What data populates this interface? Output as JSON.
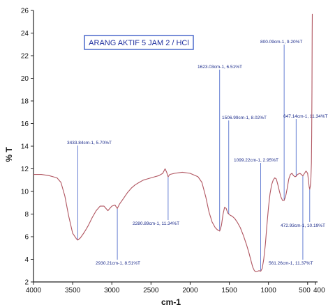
{
  "chart_data": {
    "type": "line",
    "title": "ARANG AKTIF 5 JAM 2 / HCl",
    "xlabel": "cm-1",
    "ylabel": "% T",
    "xlim": [
      4000,
      400
    ],
    "ylim": [
      2,
      26
    ],
    "x_ticks": [
      4000,
      3500,
      3000,
      2500,
      2000,
      1500,
      1000,
      500,
      400
    ],
    "x_tick_labels": [
      "4000",
      "3500",
      "3000",
      "2500",
      "2000",
      "1500",
      "1000",
      "500",
      "400"
    ],
    "y_ticks": [
      2,
      4,
      6,
      8,
      10,
      12,
      14,
      16,
      18,
      20,
      22,
      24,
      26
    ],
    "y_tick_labels": [
      "2",
      "4",
      "6",
      "8",
      "10",
      "12",
      "14",
      "16",
      "18",
      "20",
      "22",
      "24",
      "26"
    ],
    "line_color": "#b05560",
    "annotation_color": "#3f5fc8",
    "series": [
      {
        "x": [
          4000,
          3900,
          3800,
          3750,
          3700,
          3650,
          3600,
          3550,
          3500,
          3450,
          3434,
          3400,
          3350,
          3300,
          3250,
          3200,
          3150,
          3100,
          3050,
          3000,
          2960,
          2930,
          2900,
          2850,
          2800,
          2750,
          2700,
          2650,
          2600,
          2550,
          2500,
          2450,
          2400,
          2350,
          2320,
          2300,
          2281,
          2260,
          2200,
          2100,
          2000,
          1900,
          1850,
          1800,
          1760,
          1720,
          1680,
          1650,
          1623,
          1600,
          1580,
          1560,
          1540,
          1520,
          1507,
          1490,
          1460,
          1430,
          1400,
          1360,
          1320,
          1280,
          1250,
          1220,
          1200,
          1180,
          1160,
          1140,
          1120,
          1099,
          1080,
          1060,
          1040,
          1020,
          1000,
          980,
          960,
          940,
          920,
          900,
          880,
          860,
          840,
          820,
          800,
          780,
          760,
          740,
          720,
          700,
          680,
          660,
          647,
          630,
          600,
          580,
          561,
          540,
          520,
          500,
          490,
          480,
          473,
          465,
          458,
          452,
          448,
          445,
          442,
          440
        ],
        "y": [
          11.5,
          11.5,
          11.4,
          11.3,
          11.2,
          10.8,
          9.6,
          7.8,
          6.3,
          5.8,
          5.7,
          5.9,
          6.4,
          7.0,
          7.7,
          8.3,
          8.7,
          8.7,
          8.3,
          8.7,
          8.8,
          8.5,
          8.9,
          9.4,
          9.9,
          10.3,
          10.6,
          10.8,
          11.0,
          11.1,
          11.2,
          11.3,
          11.4,
          11.6,
          12.0,
          11.7,
          11.3,
          11.5,
          11.6,
          11.7,
          11.6,
          11.3,
          10.8,
          9.5,
          8.2,
          7.3,
          6.8,
          6.6,
          6.5,
          7.0,
          8.0,
          8.6,
          8.5,
          8.1,
          8.0,
          7.9,
          7.8,
          7.6,
          7.3,
          6.8,
          6.1,
          5.3,
          4.6,
          3.8,
          3.3,
          3.0,
          2.9,
          2.95,
          3.0,
          2.95,
          3.2,
          4.0,
          5.3,
          7.0,
          8.6,
          9.8,
          10.6,
          11.0,
          11.2,
          11.1,
          10.6,
          10.0,
          9.5,
          9.2,
          9.2,
          9.6,
          10.3,
          11.1,
          11.5,
          11.6,
          11.4,
          11.3,
          11.34,
          11.5,
          11.6,
          11.5,
          11.37,
          11.6,
          11.8,
          11.6,
          11.0,
          10.4,
          10.19,
          10.5,
          11.2,
          12.5,
          15.0,
          19.0,
          24.0,
          25.7
        ]
      }
    ],
    "annotations": [
      {
        "text": "3433.84cm-1, 5.70%T",
        "x": 3434,
        "y": 5.7
      },
      {
        "text": "2930.21cm-1, 8.51%T",
        "x": 2930,
        "y": 8.51
      },
      {
        "text": "2280.89cm-1, 11.34%T",
        "x": 2281,
        "y": 11.34
      },
      {
        "text": "1623.03cm-1, 6.51%T",
        "x": 1623,
        "y": 6.51
      },
      {
        "text": "1506.99cm-1, 8.02%T",
        "x": 1507,
        "y": 8.02
      },
      {
        "text": "1099.22cm-1, 2.95%T",
        "x": 1099,
        "y": 2.95
      },
      {
        "text": "800.09cm-1, 9.20%T",
        "x": 800,
        "y": 9.2
      },
      {
        "text": "647.14cm-1, 11.34%T",
        "x": 647,
        "y": 11.34
      },
      {
        "text": "561.26cm-1, 11.37%T",
        "x": 561,
        "y": 11.37
      },
      {
        "text": "472.93cm-1, 10.19%T",
        "x": 473,
        "y": 10.19
      }
    ]
  }
}
